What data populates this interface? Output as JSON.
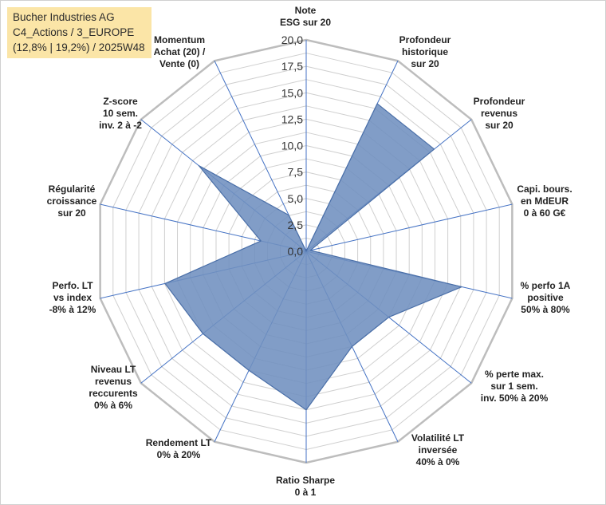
{
  "title": {
    "lines": [
      "Bucher Industries AG",
      "C4_Actions / 3_EUROPE",
      "(12,8% | 19,2%) / 2025W48"
    ]
  },
  "colors": {
    "fill": "#6f8fbf",
    "stroke": "#4a6fa8",
    "grid": "#cfcfcf",
    "outer_ring": "#bdbdbd",
    "spoke": "#4472c4",
    "title_bg": "#fbe5a7"
  },
  "chart_data": {
    "type": "radar",
    "title": "Bucher Industries AG",
    "rlim": [
      0,
      20
    ],
    "grid_step": 1.25,
    "tick_labels": [
      "0,0",
      "2,5",
      "5,0",
      "7,5",
      "10,0",
      "12,5",
      "15,0",
      "17,5",
      "20,0"
    ],
    "tick_values": [
      0,
      2.5,
      5,
      7.5,
      10,
      12.5,
      15,
      17.5,
      20
    ],
    "categories": [
      {
        "label": [
          "Note",
          "ESG sur 20"
        ],
        "value": 0
      },
      {
        "label": [
          "Profondeur",
          "historique",
          "sur 20"
        ],
        "value": 15.5
      },
      {
        "label": [
          "Profondeur",
          "revenus",
          "sur 20"
        ],
        "value": 15.5
      },
      {
        "label": [
          "Capi. bours.",
          "en MdEUR",
          "0 à 60 G€"
        ],
        "value": 0.4
      },
      {
        "label": [
          "% perfo 1A",
          "positive",
          "50% à 80%"
        ],
        "value": 15.1
      },
      {
        "label": [
          "% perte max.",
          "sur 1 sem.",
          "inv. 50% à 20%"
        ],
        "value": 10.0
      },
      {
        "label": [
          "Volatilité LT",
          "inversée",
          "40% à 0%"
        ],
        "value": 10.0
      },
      {
        "label": [
          "Ratio Sharpe",
          "0 à 1"
        ],
        "value": 15.0
      },
      {
        "label": [
          "Rendement LT",
          "0% à 20%"
        ],
        "value": 12.5
      },
      {
        "label": [
          "Niveau LT",
          "revenus",
          "reccurents",
          "0% à 6%"
        ],
        "value": 12.5
      },
      {
        "label": [
          "Perfo. LT",
          "vs index",
          "-8% à 12%"
        ],
        "value": 13.7
      },
      {
        "label": [
          "Régularité",
          "croissance",
          "sur 20"
        ],
        "value": 4.4
      },
      {
        "label": [
          "Z-score",
          "10 sem.",
          "inv. 2 à -2"
        ],
        "value": 13.0
      },
      {
        "label": [
          "Momentum",
          "Achat (20) /",
          "Vente (0)"
        ],
        "value": 3.8
      }
    ]
  }
}
